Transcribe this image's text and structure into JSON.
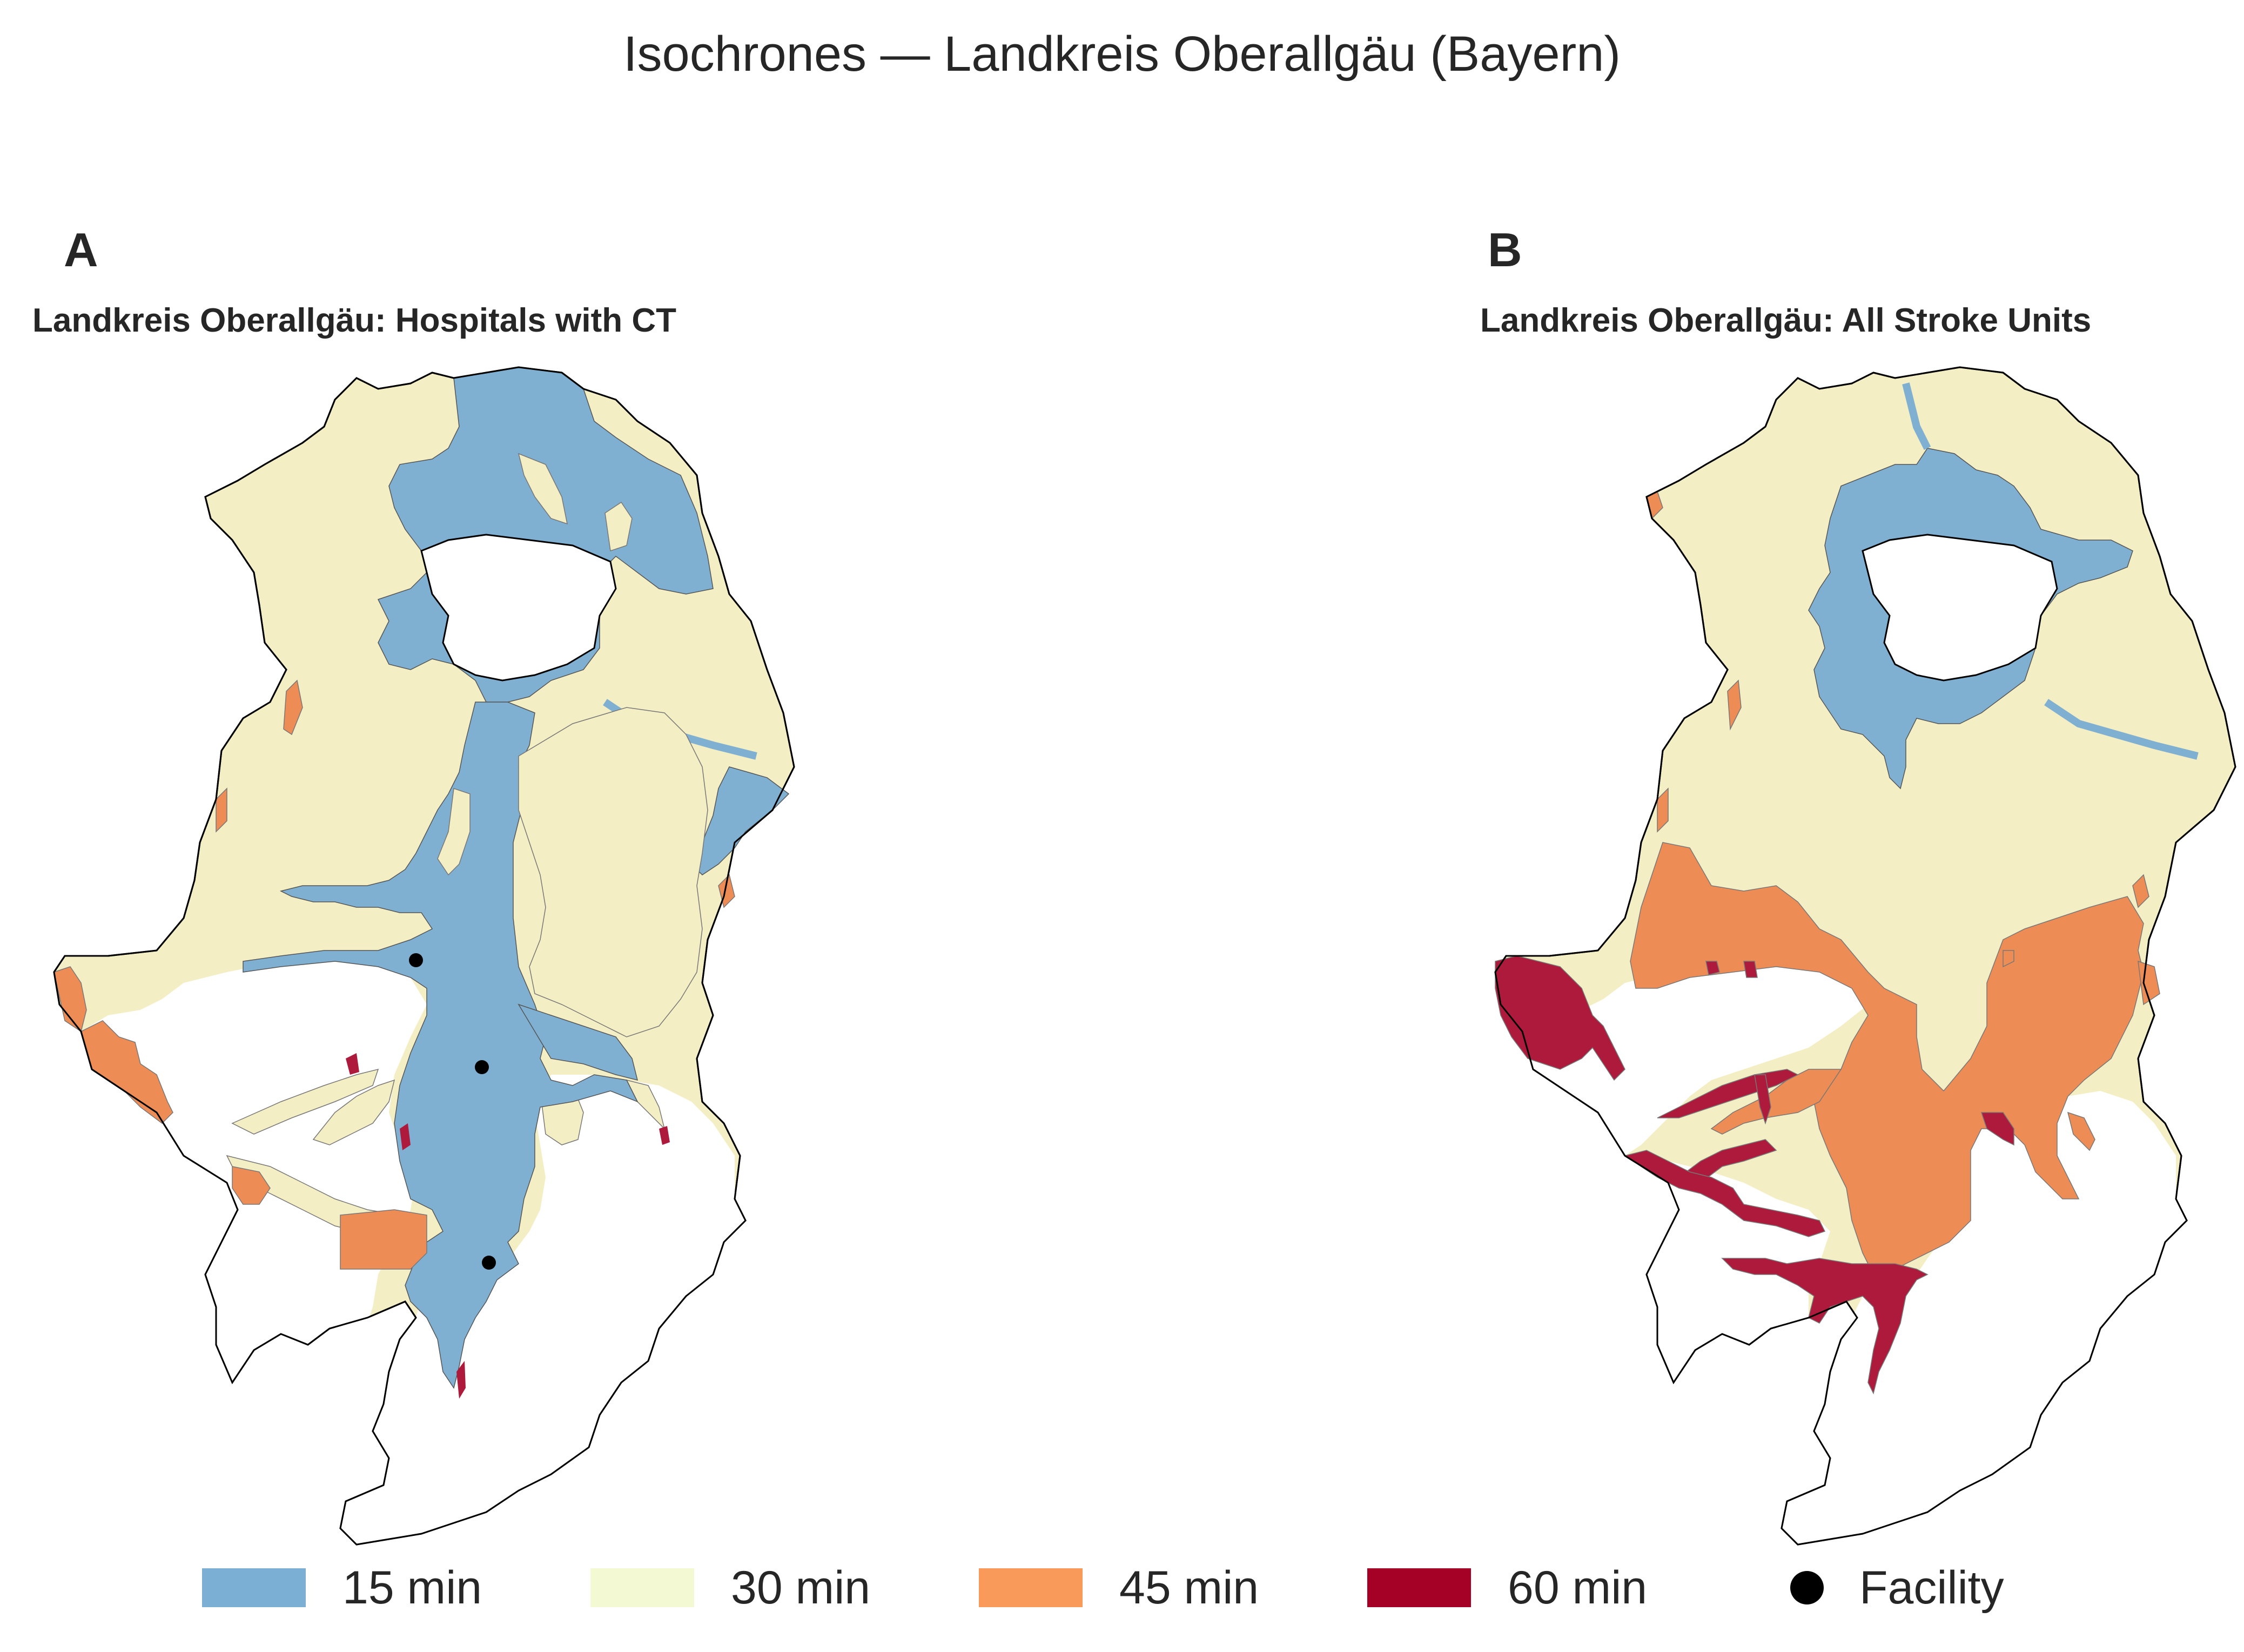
{
  "suptitle": "Isochrones — Landkreis Oberallgäu (Bayern)",
  "panels": [
    {
      "letter": "A",
      "title": "Landkreis Oberallgäu: Hospitals with CT"
    },
    {
      "letter": "B",
      "title": "Landkreis Oberallgäu: All Stroke Units"
    }
  ],
  "legend": {
    "items": [
      {
        "label": "15 min",
        "color": "#7bafd4"
      },
      {
        "label": "30 min",
        "color": "#f3f9d2"
      },
      {
        "label": "45 min",
        "color": "#f99a5a"
      },
      {
        "label": "60 min",
        "color": "#a50026"
      },
      {
        "label": "Facility",
        "color": "#000000",
        "marker": "dot"
      }
    ]
  },
  "fill_colors": {
    "15 min": "#7fb0d1",
    "30 min": "#f3eec4",
    "45 min": "#ee8c55",
    "60 min": "#ad1a3c"
  },
  "facilities_panel_A": 3
}
